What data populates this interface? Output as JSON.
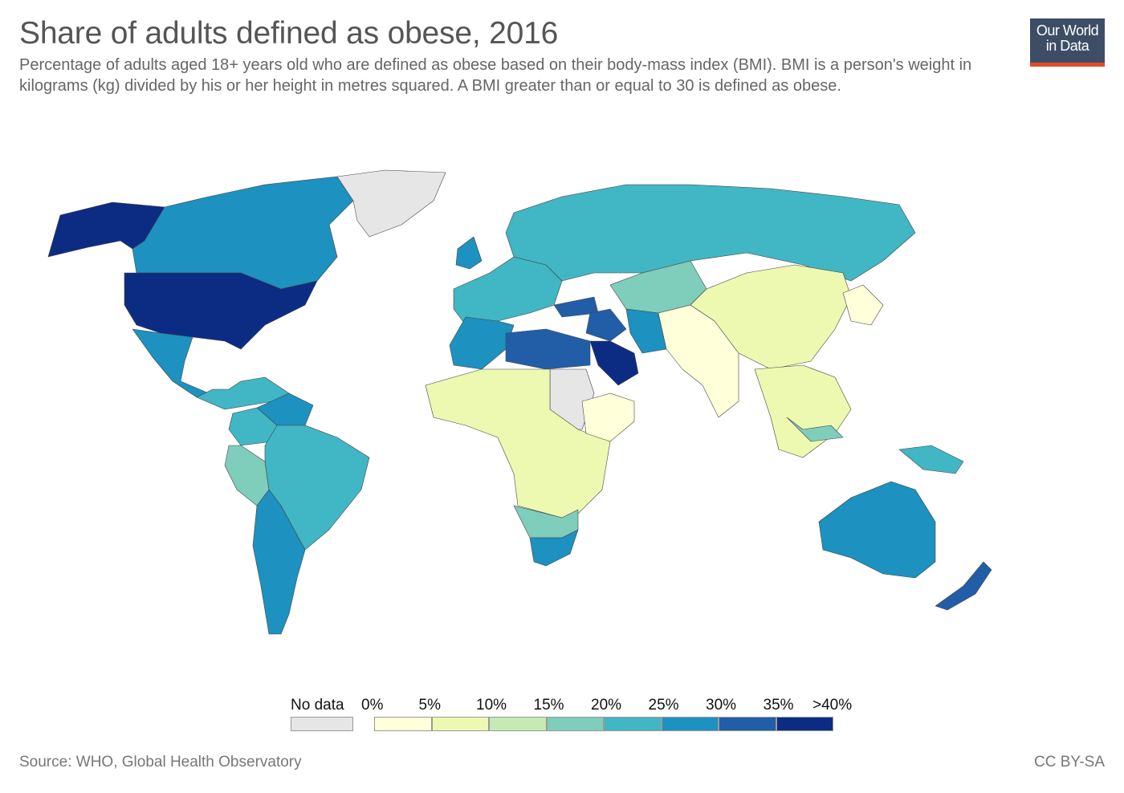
{
  "header": {
    "title": "Share of adults defined as obese, 2016",
    "subtitle": "Percentage of adults aged 18+ years old who are defined as obese based on their body-mass index (BMI). BMI is a person's weight in kilograms (kg) divided by his or her height in metres squared. A BMI greater than or equal to 30 is defined as obese."
  },
  "logo": {
    "line1": "Our World",
    "line2": "in Data",
    "bg": "#3d4d66",
    "accent": "#e04b2a"
  },
  "legend": {
    "no_data_label": "No data",
    "no_data_color": "#e6e6e6",
    "bins": [
      {
        "label": "0%",
        "color": "#ffffd9"
      },
      {
        "label": "5%",
        "color": "#edf8b1"
      },
      {
        "label": "10%",
        "color": "#c7e9b4"
      },
      {
        "label": "15%",
        "color": "#7fcdbb"
      },
      {
        "label": "20%",
        "color": "#41b6c4"
      },
      {
        "label": "25%",
        "color": "#1d91c0"
      },
      {
        "label": "30%",
        "color": "#225ea8"
      },
      {
        "label": "35%",
        "color": "#0c2c84"
      }
    ],
    "end_label": ">40%"
  },
  "footer": {
    "source": "Source: WHO, Global Health Observatory",
    "license": "CC BY-SA"
  },
  "map_data": {
    "regions": [
      {
        "region": "Alaska / Western Canada coast",
        "bin": 7
      },
      {
        "region": "Canada",
        "bin": 5
      },
      {
        "region": "United States",
        "bin": 7
      },
      {
        "region": "Greenland",
        "bin": -1
      },
      {
        "region": "Mexico",
        "bin": 5
      },
      {
        "region": "Central America & Caribbean",
        "bin": 4
      },
      {
        "region": "Venezuela",
        "bin": 5
      },
      {
        "region": "Northern South America",
        "bin": 4
      },
      {
        "region": "Peru",
        "bin": 3
      },
      {
        "region": "Brazil",
        "bin": 4
      },
      {
        "region": "Argentina / Chile",
        "bin": 5
      },
      {
        "region": "Western Europe",
        "bin": 4
      },
      {
        "region": "United Kingdom",
        "bin": 5
      },
      {
        "region": "Russia",
        "bin": 4
      },
      {
        "region": "Central Asia",
        "bin": 3
      },
      {
        "region": "Turkey",
        "bin": 6
      },
      {
        "region": "Iraq / Syria",
        "bin": 6
      },
      {
        "region": "Saudi Arabia",
        "bin": 7
      },
      {
        "region": "Iran",
        "bin": 5
      },
      {
        "region": "North Africa (Morocco, Algeria, Tunisia)",
        "bin": 5
      },
      {
        "region": "Libya / Egypt",
        "bin": 6
      },
      {
        "region": "Sudan",
        "bin": -1
      },
      {
        "region": "Sub-Saharan Africa",
        "bin": 1
      },
      {
        "region": "Horn of Africa",
        "bin": 0
      },
      {
        "region": "Southern Africa (Namibia, Botswana, Zimbabwe)",
        "bin": 3
      },
      {
        "region": "South Africa",
        "bin": 5
      },
      {
        "region": "India / South Asia",
        "bin": 0
      },
      {
        "region": "China",
        "bin": 1
      },
      {
        "region": "Southeast Asia",
        "bin": 1
      },
      {
        "region": "Malaysia",
        "bin": 3
      },
      {
        "region": "Japan / Korea",
        "bin": 0
      },
      {
        "region": "Papua New Guinea",
        "bin": 4
      },
      {
        "region": "Australia",
        "bin": 5
      },
      {
        "region": "New Zealand",
        "bin": 6
      }
    ]
  }
}
